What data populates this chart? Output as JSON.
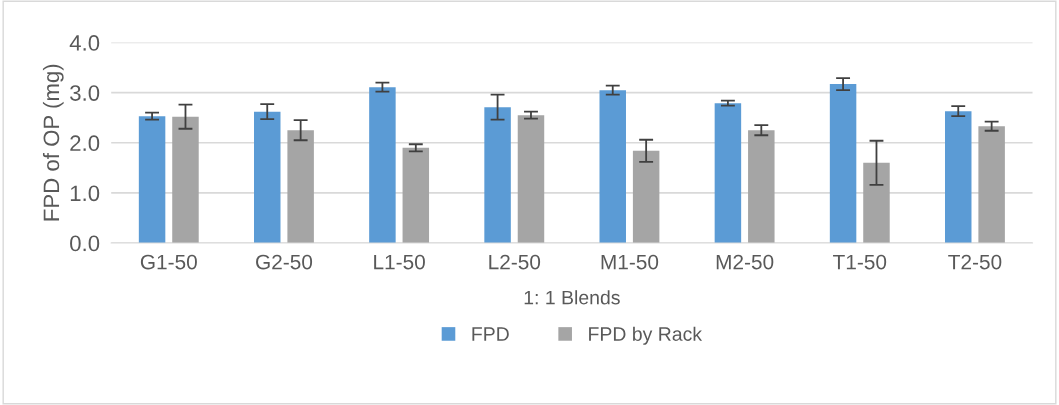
{
  "chart_data": {
    "type": "bar",
    "ylabel": "FPD of OP (mg)",
    "xlabel": "1: 1 Blends",
    "categories": [
      "G1-50",
      "G2-50",
      "L1-50",
      "L2-50",
      "M1-50",
      "M2-50",
      "T1-50",
      "T2-50"
    ],
    "series": [
      {
        "name": "FPD",
        "color": "#5b9bd5",
        "values": [
          2.53,
          2.62,
          3.11,
          2.71,
          3.05,
          2.79,
          3.17,
          2.63
        ],
        "errors": [
          0.07,
          0.15,
          0.09,
          0.25,
          0.09,
          0.05,
          0.12,
          0.1
        ]
      },
      {
        "name": "FPD by Rack",
        "color": "#a5a5a5",
        "values": [
          2.52,
          2.25,
          1.9,
          2.55,
          1.84,
          2.25,
          1.6,
          2.33
        ],
        "errors": [
          0.24,
          0.2,
          0.07,
          0.07,
          0.22,
          0.1,
          0.44,
          0.09
        ]
      }
    ],
    "ylim": [
      0,
      4
    ],
    "yticks": [
      {
        "value": 0,
        "label": "0.0"
      },
      {
        "value": 1,
        "label": "1.0"
      },
      {
        "value": 2,
        "label": "2.0"
      },
      {
        "value": 3,
        "label": "3.0"
      },
      {
        "value": 4,
        "label": "4.0"
      }
    ],
    "grid": "y",
    "legend": "bottom"
  }
}
